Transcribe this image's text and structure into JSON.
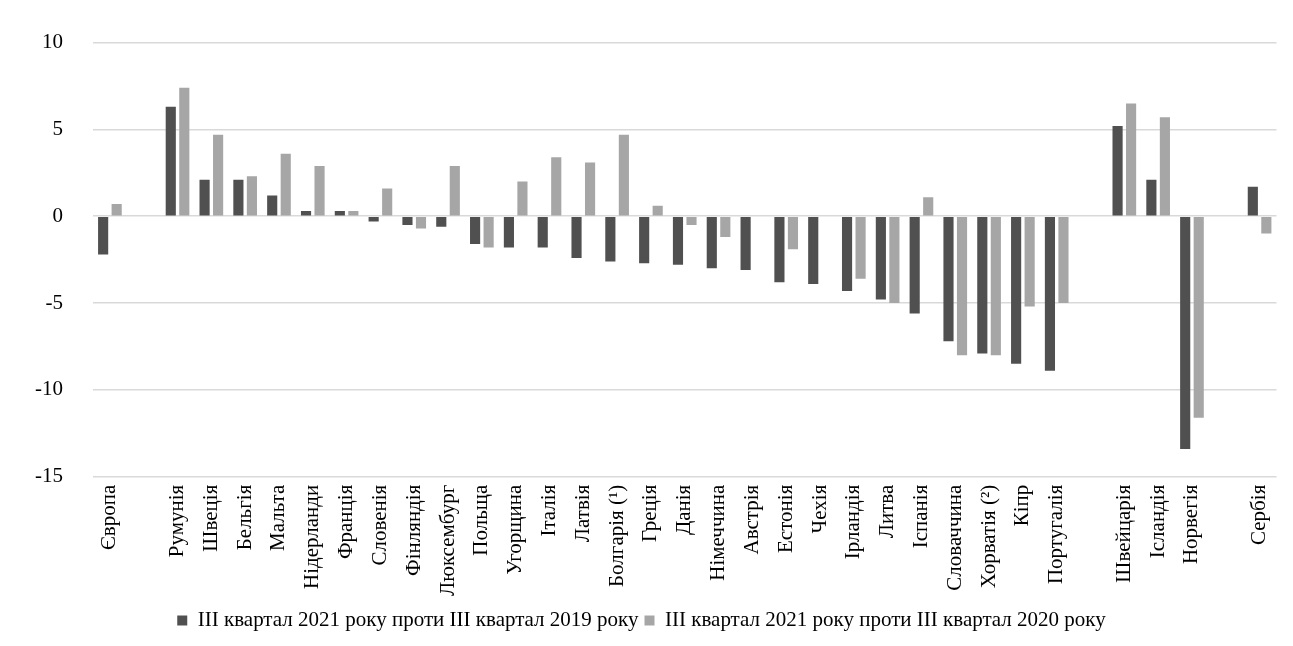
{
  "chart_data": {
    "type": "bar",
    "categories": [
      "Європа",
      null,
      "Румунія",
      "Швеція",
      "Бельгія",
      "Мальта",
      "Нідерланди",
      "Франція",
      "Словенія",
      "Фінляндія",
      "Люксембург",
      "Польща",
      "Угорщина",
      "Італія",
      "Латвія",
      "Болгарія (¹)",
      "Греція",
      "Данія",
      "Німеччина",
      "Австрія",
      "Естонія",
      "Чехія",
      "Ірландія",
      "Литва",
      "Іспанія",
      "Словаччина",
      "Хорватія (²)",
      "Кіпр",
      "Португалія",
      null,
      "Швейцарія",
      "Ісландія",
      "Норвегія",
      null,
      "Сербія"
    ],
    "series": [
      {
        "name": "III квартал 2021 року проти III квартал 2019 року",
        "color": "#505050",
        "values": [
          -2.2,
          null,
          6.3,
          2.1,
          2.1,
          1.2,
          0.3,
          0.3,
          -0.3,
          -0.5,
          -0.6,
          -1.6,
          -1.8,
          -1.8,
          -2.4,
          -2.6,
          -2.7,
          -2.8,
          -3.0,
          -3.1,
          -3.8,
          -3.9,
          -4.3,
          -4.8,
          -5.6,
          -7.2,
          -7.9,
          -8.5,
          -8.9,
          null,
          5.2,
          2.1,
          -13.4,
          null,
          1.7
        ]
      },
      {
        "name": "III квартал 2021 року проти III квартал 2020 року",
        "color": "#a6a6a6",
        "values": [
          0.7,
          null,
          7.4,
          4.7,
          2.3,
          3.6,
          2.9,
          0.3,
          1.6,
          -0.7,
          2.9,
          -1.8,
          2.0,
          3.4,
          3.1,
          4.7,
          0.6,
          -0.5,
          -1.2,
          null,
          -1.9,
          null,
          -3.6,
          -5.0,
          1.1,
          -8.0,
          -8.0,
          -5.2,
          -5.0,
          null,
          6.5,
          5.7,
          -11.6,
          null,
          -1.0
        ]
      }
    ],
    "ylim": [
      -15,
      10
    ],
    "yticks": [
      -15,
      -10,
      -5,
      0,
      5,
      10
    ],
    "grid": "y",
    "legend": "bottom"
  }
}
